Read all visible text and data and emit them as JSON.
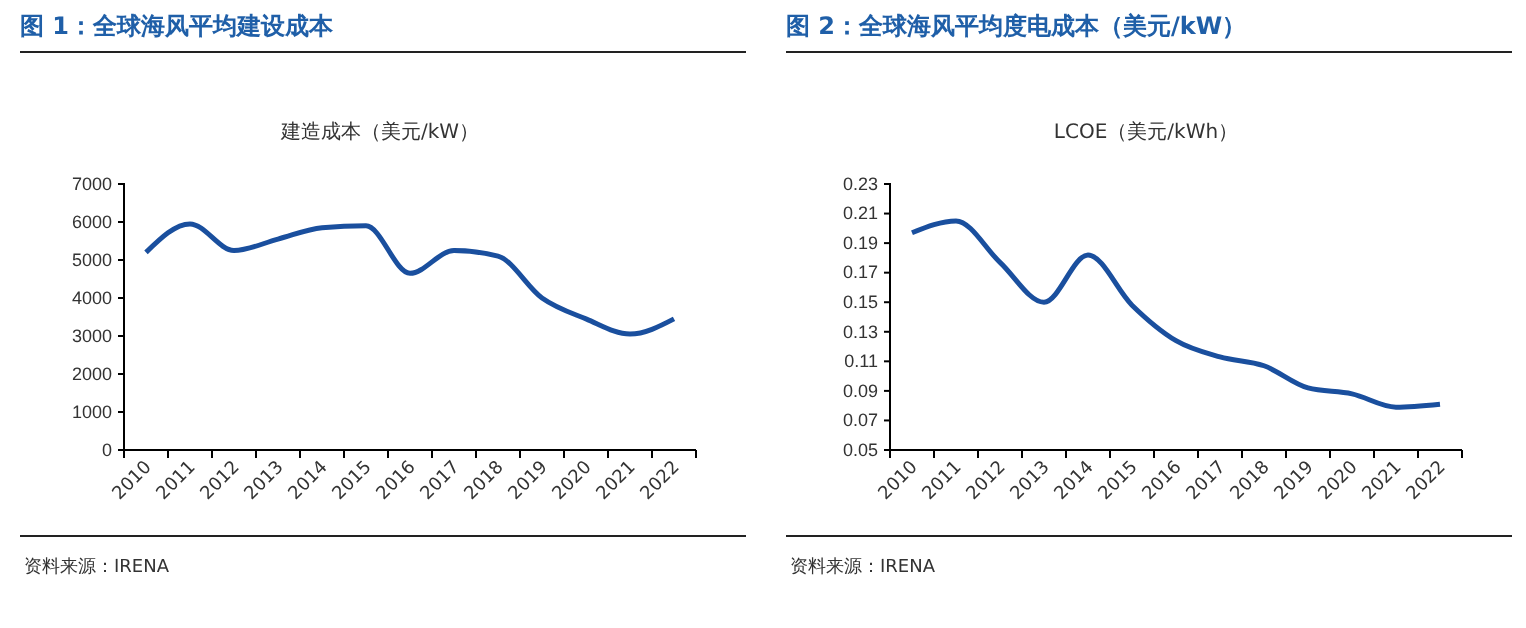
{
  "chart_data": [
    {
      "type": "line",
      "title": "图 1：全球海风平均建设成本",
      "subtitle": "建造成本（美元/kW）",
      "categories": [
        "2010",
        "2011",
        "2012",
        "2013",
        "2014",
        "2015",
        "2016",
        "2017",
        "2018",
        "2019",
        "2020",
        "2021",
        "2022"
      ],
      "series": [
        {
          "color": "#1a4f9e",
          "values": [
            5200,
            5950,
            5250,
            5550,
            5850,
            5900,
            4650,
            5250,
            5100,
            4000,
            3450,
            3050,
            3450
          ]
        }
      ],
      "ylim": [
        0,
        7000
      ],
      "yticks": [
        0,
        1000,
        2000,
        3000,
        4000,
        5000,
        6000,
        7000
      ],
      "grid": false,
      "marker": "none",
      "line_style": "solid",
      "annotations": [
        "资料来源：IRENA"
      ]
    },
    {
      "type": "line",
      "title": "图 2：全球海风平均度电成本（美元/kW）",
      "subtitle": "LCOE（美元/kWh）",
      "categories": [
        "2010",
        "2011",
        "2012",
        "2013",
        "2014",
        "2015",
        "2016",
        "2017",
        "2018",
        "2019",
        "2020",
        "2021",
        "2022"
      ],
      "series": [
        {
          "color": "#1a4f9e",
          "values": [
            0.197,
            0.205,
            0.177,
            0.15,
            0.182,
            0.148,
            0.124,
            0.113,
            0.107,
            0.092,
            0.088,
            0.079,
            0.081
          ]
        }
      ],
      "ylim": [
        0.05,
        0.23
      ],
      "yticks": [
        {
          "value": 0.05,
          "label": "0.05"
        },
        {
          "value": 0.07,
          "label": "0.07"
        },
        {
          "value": 0.09,
          "label": "0.09"
        },
        {
          "value": 0.11,
          "label": "0.11"
        },
        {
          "value": 0.13,
          "label": "0.13"
        },
        {
          "value": 0.15,
          "label": "0.15"
        },
        {
          "value": 0.17,
          "label": "0.17"
        },
        {
          "value": 0.19,
          "label": "0.19"
        },
        {
          "value": 0.21,
          "label": "0.21"
        },
        {
          "value": 0.23,
          "label": "0.23"
        }
      ],
      "grid": false,
      "marker": "none",
      "line_style": "solid",
      "annotations": [
        "资料来源：IRENA"
      ]
    }
  ]
}
